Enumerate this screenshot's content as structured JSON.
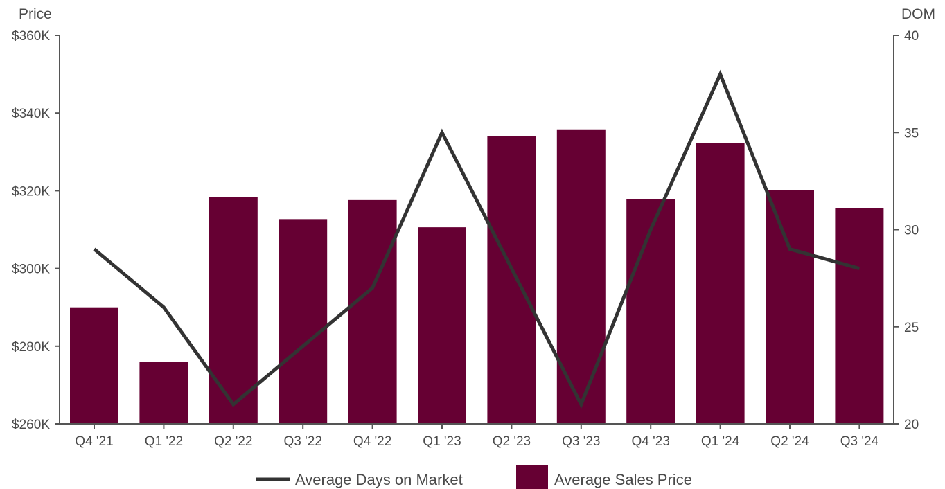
{
  "chart_data": {
    "type": "bar",
    "categories": [
      "Q4 '21",
      "Q1 '22",
      "Q2 '22",
      "Q3 '22",
      "Q4 '22",
      "Q1 '23",
      "Q2 '23",
      "Q3 '23",
      "Q4 '23",
      "Q1 '24",
      "Q2 '24",
      "Q3 '24"
    ],
    "series": [
      {
        "name": "Average Sales Price",
        "type": "bar",
        "axis": "left",
        "color": "#660033",
        "values": [
          290000,
          276000,
          318300,
          312700,
          317600,
          310600,
          334000,
          335800,
          317900,
          332300,
          320100,
          315500
        ]
      },
      {
        "name": "Average Days on Market",
        "type": "line",
        "axis": "right",
        "color": "#333333",
        "values": [
          29,
          26,
          21,
          24,
          27,
          35,
          28,
          21,
          30,
          38,
          29,
          28
        ]
      }
    ],
    "ylabel": "Price",
    "ylabel_right": "DOM",
    "ylim": [
      260000,
      360000
    ],
    "ylim_right": [
      20,
      40
    ],
    "yticks": [
      "$260K",
      "$280K",
      "$300K",
      "$320K",
      "$340K",
      "$360K"
    ],
    "yticks_values": [
      260000,
      280000,
      300000,
      320000,
      340000,
      360000
    ],
    "yticks_right": [
      "20",
      "25",
      "30",
      "35",
      "40"
    ],
    "yticks_right_values": [
      20,
      25,
      30,
      35,
      40
    ],
    "grid": false,
    "legend_position": "bottom-center"
  }
}
